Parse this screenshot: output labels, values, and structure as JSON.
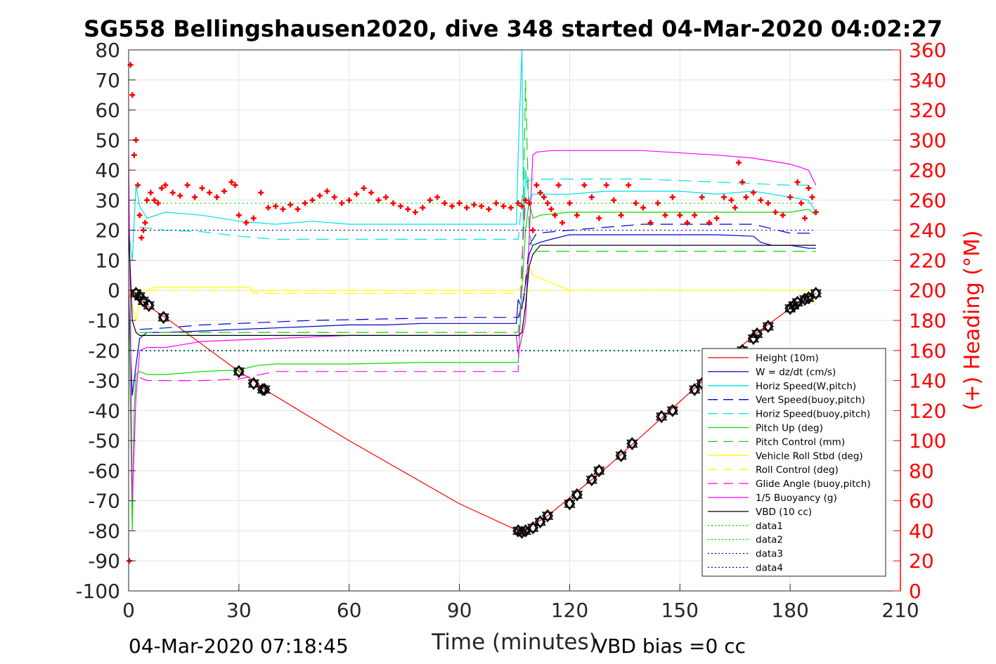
{
  "chart_data": {
    "type": "line",
    "title": "SG558 Bellingshausen2020, dive 348 started 04-Mar-2020 04:02:27",
    "xlabel": "Time (minutes)",
    "ylabel_left": "",
    "ylabel_right": "(+) Heading (°M)",
    "footer_left": "04-Mar-2020 07:18:45",
    "footer_right": "VBD bias =0 cc",
    "xlim": [
      0,
      210
    ],
    "ylim_left": [
      -100,
      80
    ],
    "ylim_right": [
      0,
      360
    ],
    "xticks": [
      "0",
      "30",
      "60",
      "90",
      "120",
      "150",
      "180",
      "210"
    ],
    "yticks_left": [
      "80",
      "70",
      "60",
      "50",
      "40",
      "30",
      "20",
      "10",
      "0",
      "-10",
      "-20",
      "-30",
      "-40",
      "-50",
      "-60",
      "-70",
      "-80",
      "-90",
      "-100"
    ],
    "yticks_right": [
      "360",
      "340",
      "320",
      "300",
      "280",
      "260",
      "240",
      "220",
      "200",
      "180",
      "160",
      "140",
      "120",
      "100",
      "80",
      "60",
      "40",
      "20",
      "0"
    ],
    "grid": true,
    "legend_position": "bottom-right",
    "legend": [
      {
        "label": "Height (10m)",
        "color": "#ff0000",
        "style": "solid"
      },
      {
        "label": "W = dz/dt (cm/s)",
        "color": "#0000cc",
        "style": "solid"
      },
      {
        "label": "Horiz Speed(W,pitch)",
        "color": "#00e0e0",
        "style": "solid"
      },
      {
        "label": "Vert Speed(buoy,pitch)",
        "color": "#0000cc",
        "style": "dashed"
      },
      {
        "label": "Horiz Speed(buoy,pitch)",
        "color": "#00e0e0",
        "style": "dashed"
      },
      {
        "label": "Pitch Up (deg)",
        "color": "#00dd00",
        "style": "solid"
      },
      {
        "label": "Pitch Control (mm)",
        "color": "#00dd00",
        "style": "dashed"
      },
      {
        "label": "Vehicle Roll Stbd (deg)",
        "color": "#ffff00",
        "style": "solid"
      },
      {
        "label": "Roll Control (deg)",
        "color": "#ffff00",
        "style": "dashed"
      },
      {
        "label": "Glide Angle (buoy,pitch)",
        "color": "#ff00ff",
        "style": "dashed"
      },
      {
        "label": "1/5 Buoyancy (g)",
        "color": "#ff00ff",
        "style": "solid"
      },
      {
        "label": "VBD (10 cc)",
        "color": "#000000",
        "style": "solid"
      },
      {
        "label": "data1",
        "color": "#00dd00",
        "style": "dotted"
      },
      {
        "label": "data2",
        "color": "#00dd00",
        "style": "dotted"
      },
      {
        "label": "data3",
        "color": "#0000cc",
        "style": "dotted"
      },
      {
        "label": "data4",
        "color": "#0000cc",
        "style": "dotted"
      }
    ],
    "series": [
      {
        "id": "height",
        "color": "#ff0000",
        "style": "solid",
        "width": 1.2,
        "x": [
          0,
          1.5,
          3,
          5,
          10,
          20,
          30,
          34,
          37,
          60,
          90,
          106,
          107,
          108,
          110,
          114,
          120,
          130,
          140,
          150,
          160,
          170,
          180,
          185,
          187
        ],
        "y": [
          -2,
          -1,
          -3,
          -5,
          -9,
          -18,
          -27,
          -30,
          -33,
          -50,
          -71,
          -80,
          -80.5,
          -80,
          -78,
          -75,
          -69,
          -59,
          -48,
          -37,
          -26,
          -15,
          -6,
          -2,
          -1
        ]
      },
      {
        "id": "w",
        "color": "#0000cc",
        "style": "solid",
        "width": 1.2,
        "x": [
          0,
          1,
          2,
          3,
          5,
          10,
          20,
          30,
          40,
          50,
          60,
          70,
          80,
          90,
          100,
          105.5,
          106,
          107,
          108,
          109,
          110,
          112,
          115,
          120,
          130,
          140,
          150,
          160,
          170,
          172,
          175,
          180,
          185,
          187
        ],
        "y": [
          -2,
          -35,
          -25,
          -16,
          -14,
          -14,
          -13.5,
          -13,
          -12.5,
          -12,
          -11.5,
          -11.5,
          -11,
          -11,
          -11,
          -11,
          -3,
          -6,
          2,
          12,
          15,
          16,
          17,
          18.5,
          18.5,
          18.5,
          18.5,
          18.5,
          18,
          16,
          15,
          15,
          14,
          14
        ]
      },
      {
        "id": "hs_w",
        "color": "#00e0e0",
        "style": "solid",
        "width": 1.2,
        "x": [
          0,
          1,
          2,
          3,
          4,
          5,
          10,
          20,
          30,
          40,
          50,
          60,
          70,
          80,
          90,
          100,
          105.5,
          106,
          107,
          107.5,
          108,
          109,
          110,
          115,
          120,
          130,
          140,
          150,
          160,
          170,
          175,
          180,
          185,
          187
        ],
        "y": [
          20,
          10,
          35,
          28,
          26,
          24,
          26,
          25,
          23,
          22,
          23,
          22,
          22,
          22,
          22,
          22,
          22,
          45,
          80,
          20,
          40,
          30,
          32,
          32,
          32,
          33,
          33,
          33,
          32,
          33,
          32,
          31,
          30,
          26
        ]
      },
      {
        "id": "vs_buoy",
        "color": "#0000cc",
        "style": "dashed",
        "width": 1.2,
        "x": [
          3,
          10,
          20,
          30,
          50,
          70,
          90,
          106,
          107.5,
          109,
          111,
          120,
          140,
          150,
          160,
          170,
          180,
          187
        ],
        "y": [
          -13,
          -12.5,
          -11.5,
          -11,
          -10,
          -9.5,
          -9,
          -9,
          -3,
          15,
          19,
          20,
          22,
          22,
          22,
          22,
          19,
          19
        ]
      },
      {
        "id": "hs_buoy",
        "color": "#00e0e0",
        "style": "dashed",
        "width": 1.2,
        "x": [
          3,
          10,
          20,
          30,
          40,
          60,
          80,
          100,
          106,
          107,
          108,
          110,
          120,
          140,
          160,
          180,
          187
        ],
        "y": [
          21,
          20,
          19.5,
          18,
          17,
          17,
          17,
          17,
          17,
          30,
          36,
          37,
          37,
          37,
          36,
          35,
          35
        ]
      },
      {
        "id": "pitch",
        "color": "#00dd00",
        "style": "solid",
        "width": 1.2,
        "x": [
          0,
          1,
          1.5,
          2,
          3,
          5,
          10,
          20,
          30,
          35,
          40,
          60,
          80,
          100,
          106,
          107,
          108,
          109,
          110,
          112,
          120,
          140,
          160,
          180,
          185,
          187
        ],
        "y": [
          0,
          -80,
          -40,
          -28,
          -27,
          -28,
          -28,
          -27,
          -26.5,
          -25,
          -24.5,
          -24.5,
          -24,
          -24,
          -24,
          0,
          20,
          30,
          24,
          25,
          26,
          26,
          26,
          26,
          27,
          25
        ]
      },
      {
        "id": "pitch_ctrl",
        "color": "#00dd00",
        "style": "dashed",
        "width": 1.2,
        "x": [
          3,
          10,
          30,
          50,
          70,
          90,
          106,
          107,
          108,
          109,
          110,
          112,
          120,
          140,
          160,
          180,
          187
        ],
        "y": [
          -14,
          -14,
          -14,
          -14,
          -14,
          -14,
          -14,
          0,
          70,
          20,
          13,
          13,
          13,
          13,
          13,
          13,
          13
        ]
      },
      {
        "id": "roll",
        "color": "#ffff00",
        "style": "solid",
        "width": 1.2,
        "x": [
          0,
          2,
          4,
          5,
          7,
          10,
          20,
          30,
          33,
          34,
          36,
          40,
          60,
          80,
          100,
          106,
          107,
          108,
          109,
          110,
          120,
          140,
          160,
          180,
          185,
          187
        ],
        "y": [
          0,
          -10,
          0,
          0,
          1,
          1,
          1,
          1,
          1,
          -1,
          0,
          0,
          0,
          0,
          0,
          0,
          2,
          5,
          8,
          5,
          0,
          0,
          0,
          0,
          0,
          -5
        ]
      },
      {
        "id": "roll_ctrl",
        "color": "#ffff00",
        "style": "dashed",
        "width": 1.2,
        "x": [
          0,
          10,
          30,
          34,
          35,
          60,
          90,
          106,
          110,
          120,
          150,
          180,
          187
        ],
        "y": [
          0,
          0,
          0,
          0,
          -1,
          -1,
          -1,
          -1,
          0,
          0,
          0,
          0,
          0
        ]
      },
      {
        "id": "glide",
        "color": "#ff00ff",
        "style": "dashed",
        "width": 1.2,
        "x": [
          3,
          5,
          10,
          20,
          30,
          40,
          60,
          80,
          100,
          106,
          107,
          108
        ],
        "y": [
          -29,
          -30,
          -30,
          -30,
          -29.5,
          -27,
          -27,
          -27,
          -27,
          -27,
          10,
          30
        ]
      },
      {
        "id": "buoyancy",
        "color": "#ff00ff",
        "style": "solid",
        "width": 1.2,
        "x": [
          0,
          1,
          2,
          3,
          5,
          6,
          10,
          20,
          40,
          60,
          80,
          100,
          105.5,
          106,
          108,
          110,
          111,
          115,
          140,
          160,
          170,
          180,
          185,
          187
        ],
        "y": [
          45,
          -70,
          -35,
          -20,
          -19,
          -19,
          -19,
          -17,
          -16,
          -15,
          -15,
          -15,
          -15,
          -21,
          -10,
          45,
          46,
          46.5,
          46.5,
          45,
          44,
          42,
          40,
          35
        ]
      },
      {
        "id": "vbd",
        "color": "#000000",
        "style": "solid",
        "width": 1.2,
        "x": [
          0,
          1,
          2,
          3,
          5,
          10,
          30,
          50,
          70,
          90,
          106,
          107,
          108,
          109,
          110,
          112,
          115,
          130,
          150,
          170,
          180,
          187
        ],
        "y": [
          20,
          -10,
          -14,
          -15,
          -15,
          -15,
          -15,
          -15,
          -15,
          -15,
          -15,
          -14,
          -5,
          8,
          12,
          15,
          15,
          15,
          15,
          15,
          15,
          15
        ]
      },
      {
        "id": "data1",
        "color": "#00dd00",
        "style": "dotted",
        "width": 1.2,
        "x": [
          0,
          187
        ],
        "y": [
          29,
          29
        ]
      },
      {
        "id": "data2",
        "color": "#00dd00",
        "style": "dotted",
        "width": 1.2,
        "x": [
          0,
          187
        ],
        "y": [
          -20.2,
          -20.2
        ]
      },
      {
        "id": "data3",
        "color": "#0000cc",
        "style": "dotted",
        "width": 1.2,
        "x": [
          0,
          187
        ],
        "y": [
          20,
          20
        ]
      },
      {
        "id": "data4",
        "color": "#0000cc",
        "style": "dotted",
        "width": 1.2,
        "x": [
          0,
          187
        ],
        "y": [
          -20,
          -20
        ]
      }
    ],
    "heading": {
      "axis": "right",
      "color": "#ff0000",
      "marker": "+",
      "x": [
        0.2,
        0.5,
        1,
        1.5,
        2,
        2.5,
        3,
        3.5,
        4,
        4.5,
        5,
        6,
        7,
        8,
        9,
        10,
        12,
        14,
        16,
        18,
        20,
        22,
        24,
        26,
        28,
        29,
        30,
        32,
        34,
        36,
        38,
        40,
        42,
        44,
        46,
        48,
        50,
        52,
        54,
        56,
        58,
        60,
        62,
        64,
        66,
        68,
        70,
        72,
        74,
        76,
        78,
        80,
        82,
        84,
        86,
        88,
        90,
        92,
        94,
        96,
        98,
        100,
        102,
        104,
        106,
        107,
        108,
        109,
        110,
        111,
        112,
        113,
        114,
        115,
        116,
        117,
        118,
        120,
        122,
        124,
        126,
        128,
        130,
        132,
        134,
        136,
        138,
        140,
        142,
        144,
        146,
        148,
        150,
        152,
        154,
        156,
        158,
        160,
        162,
        164,
        165,
        166,
        167,
        168,
        170,
        172,
        174,
        176,
        178,
        180,
        182,
        183,
        184,
        185,
        186,
        187
      ],
      "y": [
        20,
        350,
        330,
        290,
        300,
        270,
        250,
        235,
        240,
        245,
        260,
        265,
        260,
        258,
        268,
        270,
        265,
        263,
        270,
        262,
        268,
        265,
        262,
        266,
        272,
        270,
        250,
        245,
        248,
        265,
        255,
        256,
        254,
        257,
        254,
        258,
        260,
        263,
        266,
        262,
        258,
        260,
        264,
        268,
        265,
        260,
        262,
        258,
        256,
        254,
        252,
        255,
        260,
        262,
        258,
        256,
        258,
        255,
        257,
        256,
        254,
        258,
        256,
        255,
        258,
        256,
        260,
        258,
        240,
        270,
        265,
        262,
        258,
        254,
        250,
        270,
        245,
        258,
        250,
        270,
        262,
        248,
        270,
        260,
        250,
        270,
        258,
        255,
        245,
        258,
        250,
        262,
        250,
        245,
        250,
        262,
        245,
        248,
        262,
        260,
        255,
        285,
        272,
        262,
        265,
        260,
        258,
        252,
        250,
        262,
        272,
        258,
        248,
        268,
        262,
        252
      ]
    },
    "markers": {
      "series": "height",
      "symbols": [
        "diamond",
        "hexagram"
      ],
      "x": [
        2,
        3,
        4,
        5.5,
        9.5,
        30,
        34,
        36.5,
        37,
        106,
        107,
        108,
        110,
        112,
        114,
        120,
        122,
        126,
        128,
        134,
        137,
        145,
        148,
        154,
        156,
        167,
        170,
        171,
        174,
        180,
        181,
        182,
        184,
        185,
        187
      ],
      "y": [
        -1,
        -2,
        -3.5,
        -5,
        -9,
        -27,
        -31,
        -33,
        -33,
        -80,
        -80.5,
        -80,
        -79,
        -77,
        -75,
        -71,
        -68,
        -63,
        -60,
        -55,
        -51,
        -42,
        -40,
        -33,
        -31,
        -20,
        -16,
        -14.5,
        -12,
        -6,
        -5,
        -4,
        -3,
        -2.5,
        -1
      ]
    }
  }
}
